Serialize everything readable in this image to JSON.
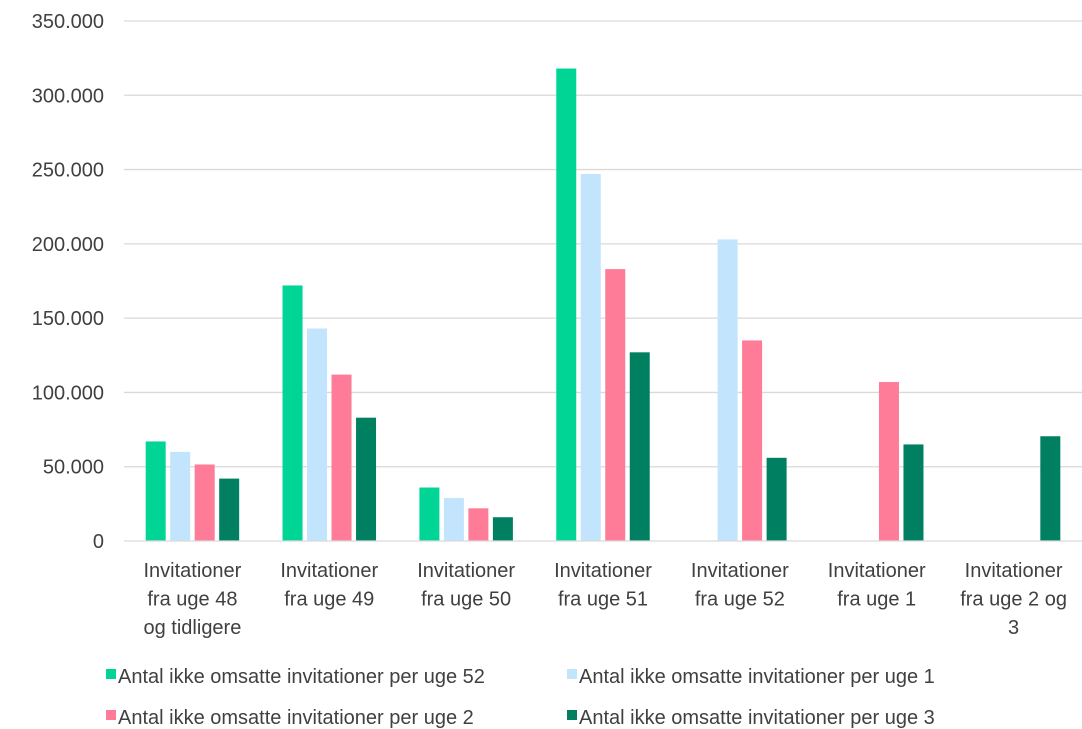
{
  "chart_data": {
    "type": "bar",
    "categories": [
      [
        "Invitationer",
        "fra uge 48",
        "og tidligere"
      ],
      [
        "Invitationer",
        "fra uge 49"
      ],
      [
        "Invitationer",
        "fra uge 50"
      ],
      [
        "Invitationer",
        "fra uge 51"
      ],
      [
        "Invitationer",
        "fra uge 52"
      ],
      [
        "Invitationer",
        "fra uge 1"
      ],
      [
        "Invitationer",
        "fra uge 2 og",
        "3"
      ]
    ],
    "series": [
      {
        "name": "Antal ikke omsatte invitationer per uge 52",
        "color": "#00d596",
        "values": [
          67000,
          172000,
          36000,
          318000,
          null,
          null,
          null
        ]
      },
      {
        "name": "Antal ikke omsatte invitationer per uge 1",
        "color": "#c3e4fd",
        "values": [
          60000,
          143000,
          29000,
          247000,
          203000,
          null,
          null
        ]
      },
      {
        "name": "Antal ikke omsatte invitationer per uge 2",
        "color": "#fe7c98",
        "values": [
          51500,
          112000,
          22000,
          183000,
          135000,
          107000,
          null
        ]
      },
      {
        "name": "Antal ikke omsatte invitationer per uge 3",
        "color": "#008060",
        "values": [
          42000,
          83000,
          16000,
          127000,
          56000,
          65000,
          70500
        ]
      }
    ],
    "yticks": [
      "0",
      "50.000",
      "100.000",
      "150.000",
      "200.000",
      "250.000",
      "300.000",
      "350.000"
    ],
    "ylim": [
      0,
      350000
    ],
    "grid": true,
    "legend_position": "bottom",
    "title": "",
    "xlabel": "",
    "ylabel": ""
  }
}
